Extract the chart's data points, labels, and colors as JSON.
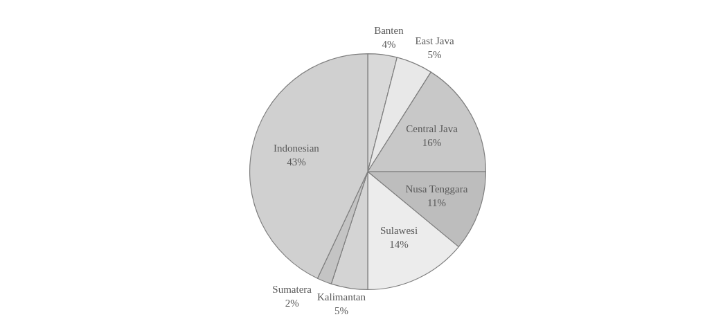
{
  "chart_data": {
    "type": "pie",
    "categories": [
      "Banten",
      "East Java",
      "Central Java",
      "Nusa Tenggara",
      "Sulawesi",
      "Kalimantan",
      "Sumatera",
      "Indonesian"
    ],
    "values": [
      4,
      5,
      16,
      11,
      14,
      5,
      2,
      43
    ],
    "colors": [
      "#d9d9d9",
      "#e8e8e8",
      "#c8c8c8",
      "#bdbdbd",
      "#ececec",
      "#d4d4d4",
      "#c4c4c4",
      "#d0d0d0"
    ],
    "value_labels": [
      "4%",
      "5%",
      "16%",
      "11%",
      "14%",
      "5%",
      "2%",
      "43%"
    ],
    "legend": false
  }
}
